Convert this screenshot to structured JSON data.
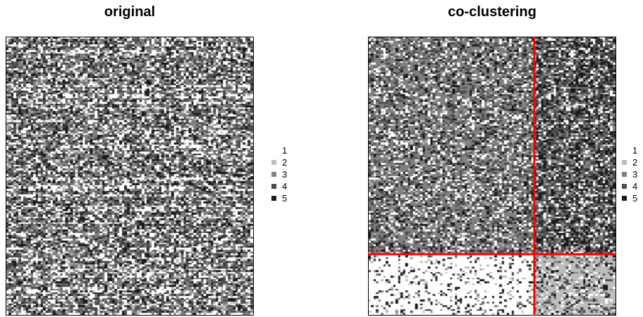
{
  "chart_data": [
    {
      "type": "heatmap",
      "title": "original",
      "n_rows": 150,
      "n_cols": 100,
      "levels": [
        1,
        2,
        3,
        4,
        5
      ],
      "level_colors": {
        "1": "#ffffff",
        "2": "#bdbdbd",
        "3": "#808080",
        "4": "#4d4d4d",
        "5": "#1a1a1a"
      },
      "pattern": "unordered"
    },
    {
      "type": "heatmap",
      "title": "co-clustering",
      "n_rows": 150,
      "n_cols": 100,
      "levels": [
        1,
        2,
        3,
        4,
        5
      ],
      "level_colors": {
        "1": "#ffffff",
        "2": "#bdbdbd",
        "3": "#808080",
        "4": "#4d4d4d",
        "5": "#1a1a1a"
      },
      "row_clusters": [
        117,
        33
      ],
      "col_clusters": [
        67,
        33
      ],
      "separator_color": "#ff0000",
      "block_dominant_levels": [
        [
          3,
          4
        ],
        [
          1,
          2
        ]
      ]
    }
  ],
  "legend": {
    "items": [
      {
        "label": "1",
        "color": "#ffffff"
      },
      {
        "label": "2",
        "color": "#bdbdbd"
      },
      {
        "label": "3",
        "color": "#808080"
      },
      {
        "label": "4",
        "color": "#4d4d4d"
      },
      {
        "label": "5",
        "color": "#1a1a1a"
      }
    ]
  }
}
